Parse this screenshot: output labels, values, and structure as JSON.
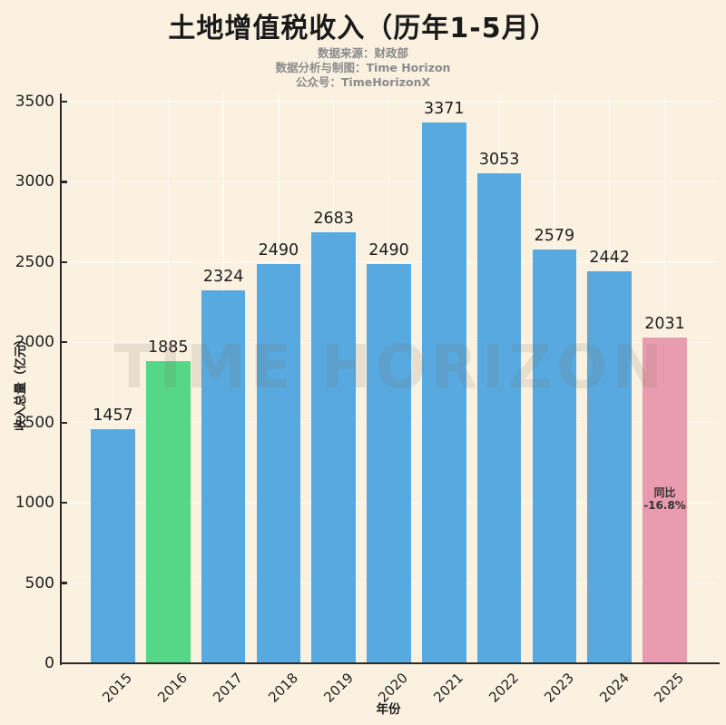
{
  "header": {
    "title": "土地增值税收入（历年1-5月）",
    "subtitle_lines": [
      "数据来源：财政部",
      "数据分析与制图：Time Horizon",
      "公众号：TimeHorizonX"
    ]
  },
  "watermark": {
    "text": "TIME HORIZON"
  },
  "chart_data": {
    "type": "bar",
    "title": "土地增值税收入（历年1-5月）",
    "categories": [
      "2015",
      "2016",
      "2017",
      "2018",
      "2019",
      "2020",
      "2021",
      "2022",
      "2023",
      "2024",
      "2025"
    ],
    "values": [
      1457,
      1885,
      2324,
      2490,
      2683,
      2490,
      3371,
      3053,
      2579,
      2442,
      2031
    ],
    "bar_colors": [
      "#58A9DF",
      "#56D687",
      "#58A9DF",
      "#58A9DF",
      "#58A9DF",
      "#58A9DF",
      "#58A9DF",
      "#58A9DF",
      "#58A9DF",
      "#58A9DF",
      "#E99CAF"
    ],
    "xlabel": "年份",
    "ylabel": "收入总量（亿元）",
    "ylim": [
      0,
      3500
    ],
    "ytick_step": 500,
    "grid": true,
    "legend": null,
    "annotations": [
      {
        "category": "2025",
        "lines": [
          "同比",
          "-16.8%"
        ]
      }
    ]
  },
  "colors": {
    "background": "#FAF1E1",
    "bar_default": "#58A9DF",
    "bar_highlight_2016": "#56D687",
    "bar_highlight_2025": "#E99CAF",
    "axis": "#2b2b2b",
    "title_text": "#1a1a1a",
    "subtitle_text": "#8b8b8b",
    "gridline": "rgba(255,255,255,0.55)",
    "watermark_text": "rgba(125,108,82,0.14)"
  }
}
